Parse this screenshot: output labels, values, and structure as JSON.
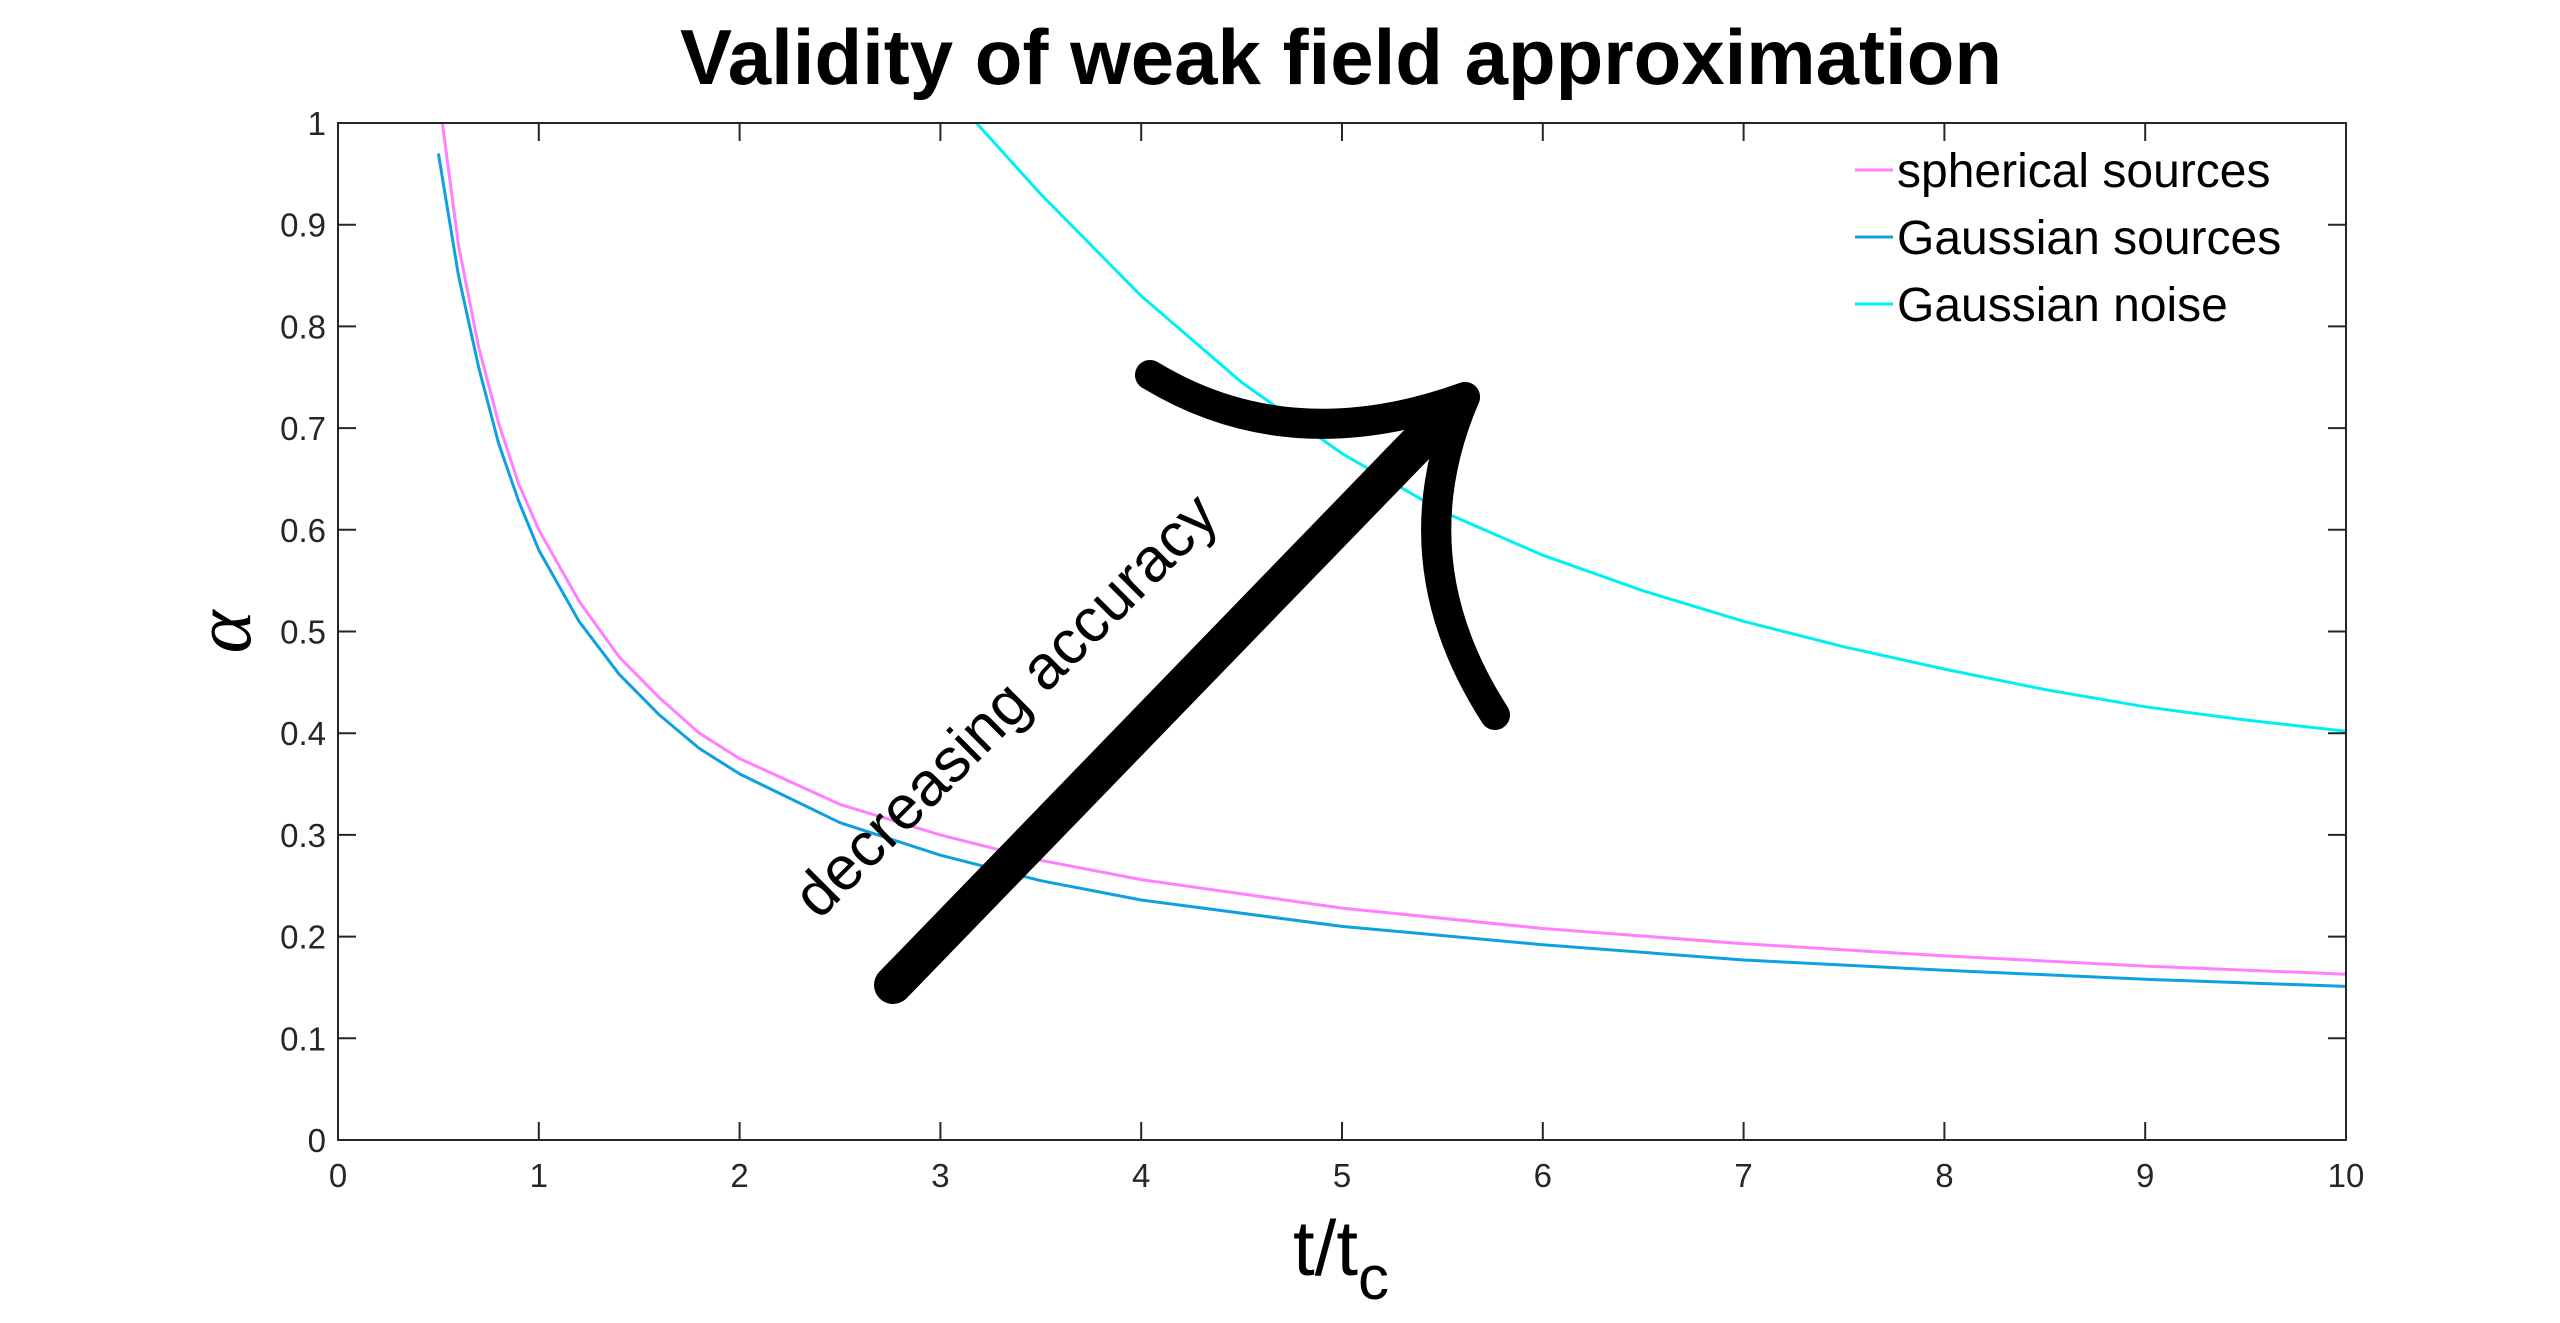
{
  "chart_data": {
    "type": "line",
    "title": "Validity of weak field approximation",
    "xlabel": "t/t",
    "xlabel_subscript": "c",
    "ylabel": "α",
    "xlim": [
      0,
      10
    ],
    "ylim": [
      0,
      1
    ],
    "x_ticks": [
      0,
      1,
      2,
      3,
      4,
      5,
      6,
      7,
      8,
      9,
      10
    ],
    "y_ticks": [
      0,
      0.1,
      0.2,
      0.3,
      0.4,
      0.5,
      0.6,
      0.7,
      0.8,
      0.9,
      1
    ],
    "grid": false,
    "legend_position": "top-right",
    "series": [
      {
        "name": "spherical sources",
        "color": "#ff7fff",
        "x": [
          0.52,
          0.6,
          0.7,
          0.8,
          0.9,
          1.0,
          1.2,
          1.4,
          1.6,
          1.8,
          2.0,
          2.5,
          3.0,
          3.5,
          4.0,
          5.0,
          6.0,
          7.0,
          8.0,
          9.0,
          10.0
        ],
        "y": [
          1.0,
          0.88,
          0.78,
          0.705,
          0.645,
          0.6,
          0.53,
          0.475,
          0.435,
          0.4,
          0.375,
          0.33,
          0.3,
          0.275,
          0.256,
          0.228,
          0.208,
          0.193,
          0.181,
          0.171,
          0.163
        ]
      },
      {
        "name": "Gaussian sources",
        "color": "#0fa0e0",
        "x": [
          0.5,
          0.6,
          0.7,
          0.8,
          0.9,
          1.0,
          1.2,
          1.4,
          1.6,
          1.8,
          2.0,
          2.5,
          3.0,
          3.5,
          4.0,
          5.0,
          6.0,
          7.0,
          8.0,
          9.0,
          10.0
        ],
        "y": [
          0.97,
          0.85,
          0.76,
          0.685,
          0.628,
          0.58,
          0.51,
          0.458,
          0.418,
          0.385,
          0.36,
          0.312,
          0.28,
          0.255,
          0.236,
          0.21,
          0.192,
          0.177,
          0.167,
          0.158,
          0.151
        ]
      },
      {
        "name": "Gaussian noise",
        "color": "#00f0f0",
        "x": [
          3.18,
          3.5,
          4.0,
          4.5,
          5.0,
          5.5,
          6.0,
          6.5,
          7.0,
          7.5,
          8.0,
          8.5,
          9.0,
          9.5,
          10.0
        ],
        "y": [
          1.0,
          0.93,
          0.83,
          0.745,
          0.675,
          0.618,
          0.575,
          0.54,
          0.51,
          0.485,
          0.463,
          0.443,
          0.426,
          0.413,
          0.402
        ]
      }
    ],
    "annotation": {
      "text": "decreasing accuracy"
    }
  }
}
